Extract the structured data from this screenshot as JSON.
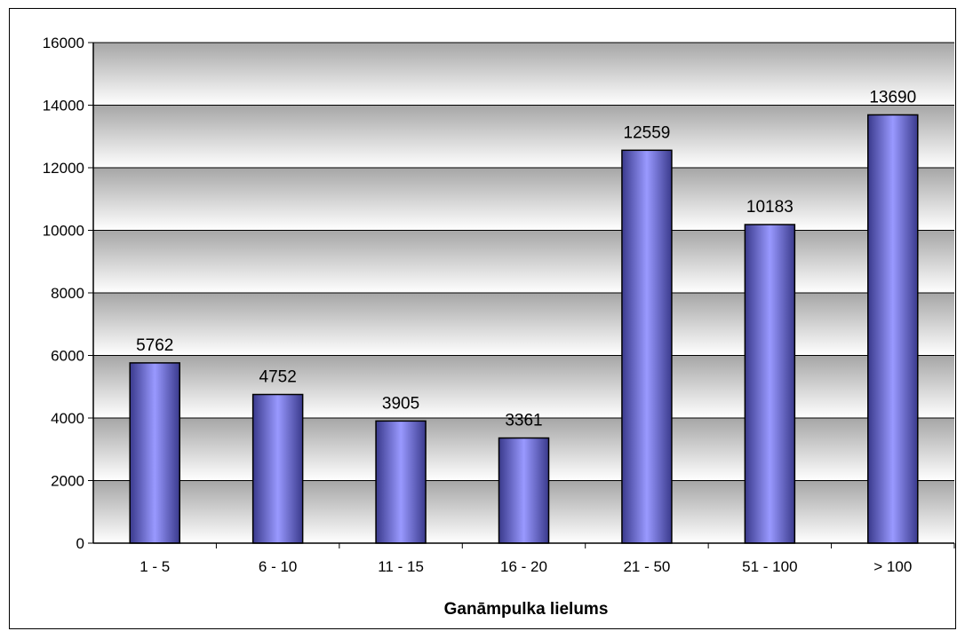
{
  "chart_data": {
    "type": "bar",
    "title": "",
    "xlabel": "Ganāmpulka lielums",
    "ylabel": "",
    "categories": [
      "1 - 5",
      "6 - 10",
      "11 - 15",
      "16 - 20",
      "21 - 50",
      "51 - 100",
      "> 100"
    ],
    "values": [
      5762,
      4752,
      3905,
      3361,
      12559,
      10183,
      13690
    ],
    "ylim": [
      0,
      16000
    ],
    "yticks": [
      "0",
      "2000",
      "4000",
      "6000",
      "8000",
      "10000",
      "12000",
      "14000",
      "16000"
    ],
    "grid": true,
    "legend": "none",
    "colors": {
      "bar": "#9999ff",
      "plot_gradient_top": "#a6a6a6",
      "plot_gradient_bottom": "#ffffff"
    }
  }
}
